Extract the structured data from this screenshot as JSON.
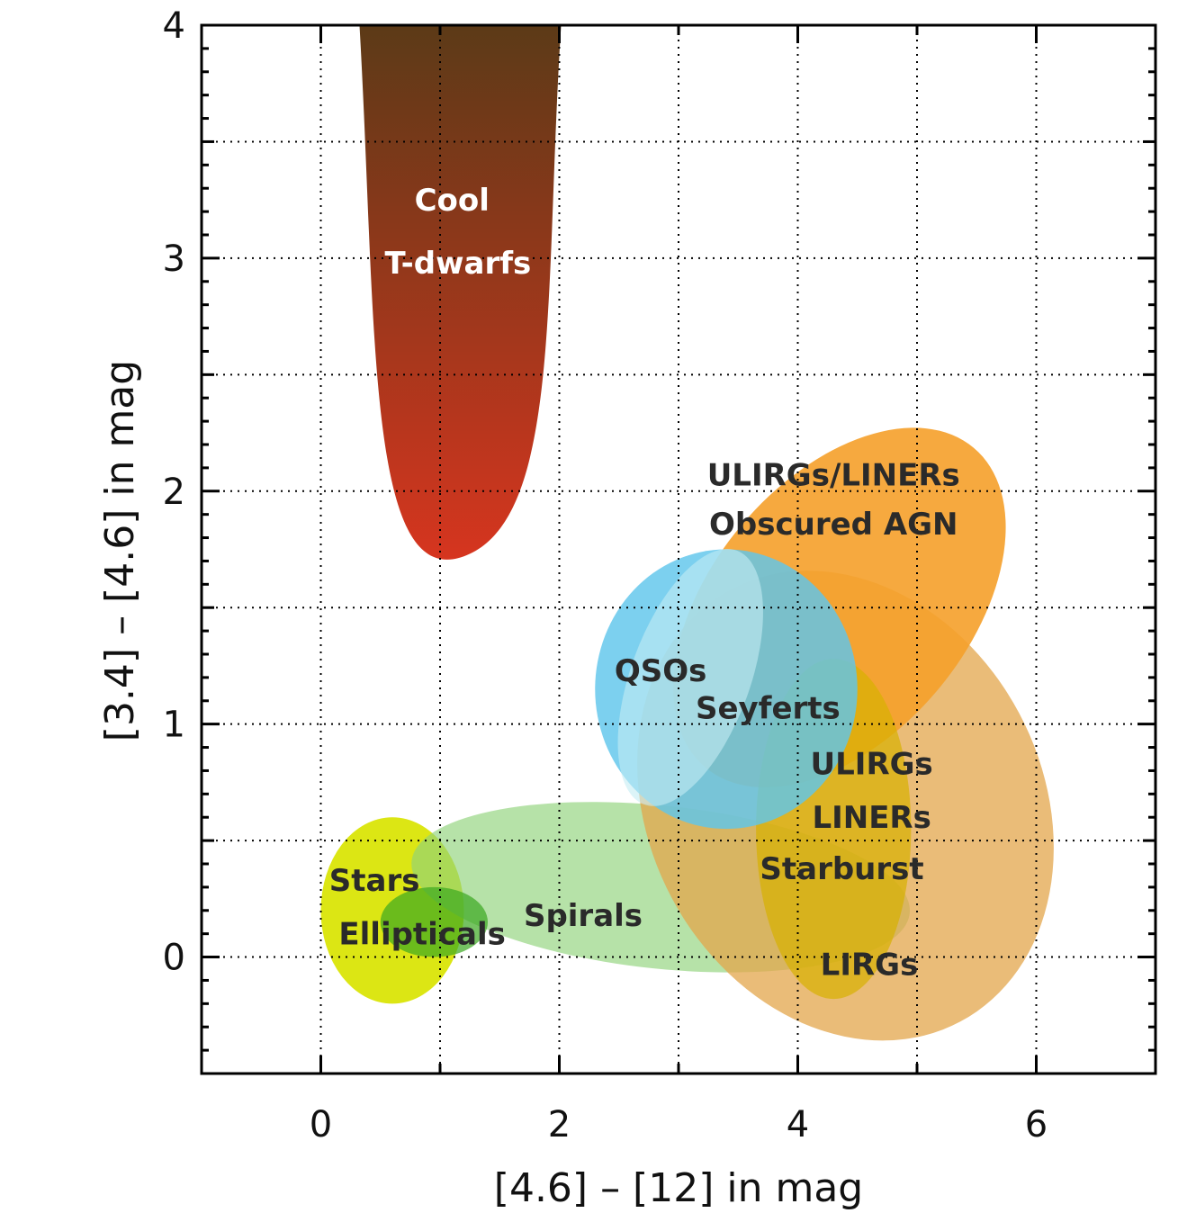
{
  "chart_data": {
    "type": "scatter",
    "title": "",
    "xlabel": "[4.6] – [12] in mag",
    "ylabel": "[3.4] – [4.6] in mag",
    "xlim": [
      -1,
      7
    ],
    "ylim": [
      -0.5,
      4
    ],
    "x_ticks": [
      0,
      2,
      4,
      6
    ],
    "y_ticks": [
      0,
      1,
      2,
      3,
      4
    ],
    "grid": true,
    "regions": [
      {
        "name": "Stars",
        "shape": "ellipse",
        "cx": 0.6,
        "cy": 0.2,
        "rx": 0.6,
        "ry": 0.4,
        "rot": 0,
        "color": "#d9e400",
        "opacity": 0.92
      },
      {
        "name": "Spirals",
        "shape": "ellipse",
        "cx": 2.85,
        "cy": 0.3,
        "rx": 2.1,
        "ry": 0.35,
        "rot": 6,
        "color": "#8fd27a",
        "opacity": 0.65
      },
      {
        "name": "Ellipticals",
        "shape": "ellipse",
        "cx": 0.95,
        "cy": 0.15,
        "rx": 0.45,
        "ry": 0.15,
        "rot": 0,
        "color": "#3aa820",
        "opacity": 0.7
      },
      {
        "name": "LIRGs",
        "shape": "ellipse",
        "cx": 4.4,
        "cy": 0.65,
        "rx": 1.65,
        "ry": 1.05,
        "rot": -28,
        "color": "#e3a64b",
        "opacity": 0.75
      },
      {
        "name": "ULIRGs/LINERs Obscured AGN",
        "shape": "ellipse",
        "cx": 4.35,
        "cy": 1.5,
        "rx": 1.75,
        "ry": 0.55,
        "rot": -50,
        "color": "#f5a02a",
        "opacity": 0.9
      },
      {
        "name": "Starburst",
        "shape": "ellipse",
        "cx": 4.3,
        "cy": 0.55,
        "rx": 0.65,
        "ry": 0.73,
        "rot": 0,
        "color": "#d7b000",
        "opacity": 0.7
      },
      {
        "name": "QSOs",
        "shape": "ellipse",
        "cx": 3.4,
        "cy": 1.15,
        "rx": 1.1,
        "ry": 0.6,
        "rot": 0,
        "color": "#5fc6ec",
        "opacity": 0.82
      },
      {
        "name": "Seyferts",
        "shape": "ellipse",
        "cx": 3.1,
        "cy": 1.2,
        "rx": 0.5,
        "ry": 0.58,
        "rot": 20,
        "color": "#c4ecf4",
        "opacity": 0.6
      }
    ],
    "tdwarfs": {
      "name": "Cool T-dwarfs",
      "x_left": 0.32,
      "x_right": 2.02,
      "x_tip": 1.2,
      "y_tip": 1.72,
      "y_top": 4.0,
      "color_top": "#5a3a17",
      "color_bottom": "#d6351f"
    },
    "labels": [
      {
        "text": "Cool",
        "x": 1.1,
        "y": 3.25,
        "light": true
      },
      {
        "text": "T-dwarfs",
        "x": 1.15,
        "y": 2.98,
        "light": true
      },
      {
        "text": "ULIRGs/LINERs",
        "x": 4.3,
        "y": 2.07,
        "light": false
      },
      {
        "text": "Obscured AGN",
        "x": 4.3,
        "y": 1.86,
        "light": false
      },
      {
        "text": "QSOs",
        "x": 2.85,
        "y": 1.23,
        "light": false
      },
      {
        "text": "Seyferts",
        "x": 3.75,
        "y": 1.07,
        "light": false
      },
      {
        "text": "ULIRGs",
        "x": 4.62,
        "y": 0.83,
        "light": false
      },
      {
        "text": "LINERs",
        "x": 4.62,
        "y": 0.6,
        "light": false
      },
      {
        "text": "Starburst",
        "x": 4.37,
        "y": 0.38,
        "light": false
      },
      {
        "text": "Stars",
        "x": 0.45,
        "y": 0.33,
        "light": false
      },
      {
        "text": "Spirals",
        "x": 2.2,
        "y": 0.18,
        "light": false
      },
      {
        "text": "Ellipticals",
        "x": 0.85,
        "y": 0.1,
        "light": false
      },
      {
        "text": "LIRGs",
        "x": 4.6,
        "y": -0.03,
        "light": false
      }
    ]
  }
}
